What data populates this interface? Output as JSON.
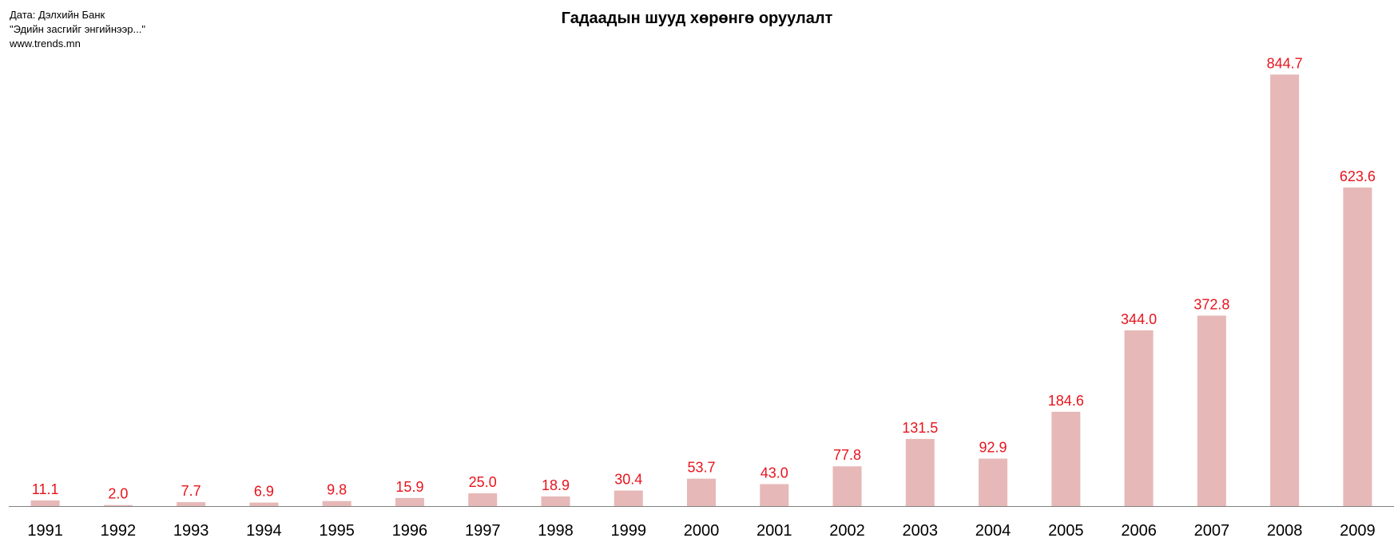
{
  "source": {
    "line1": "Дата: Дэлхийн Банк",
    "line2": "\"Эдийн засгийг энгийнээр...\"",
    "line3": "www.trends.mn"
  },
  "chart_data": {
    "type": "bar",
    "title": "Гадаадын шууд хөрөнгө оруулалт",
    "xlabel": "",
    "ylabel": "",
    "categories": [
      "1991",
      "1992",
      "1993",
      "1994",
      "1995",
      "1996",
      "1997",
      "1998",
      "1999",
      "2000",
      "2001",
      "2002",
      "2003",
      "2004",
      "2005",
      "2006",
      "2007",
      "2008",
      "2009"
    ],
    "values": [
      11.1,
      2.0,
      7.7,
      6.9,
      9.8,
      15.9,
      25.0,
      18.9,
      30.4,
      53.7,
      43.0,
      77.8,
      131.5,
      92.9,
      184.6,
      344.0,
      372.8,
      844.7,
      623.6
    ],
    "data_labels": [
      "11.1",
      "2.0",
      "7.7",
      "6.9",
      "9.8",
      "15.9",
      "25.0",
      "18.9",
      "30.4",
      "53.7",
      "43.0",
      "77.8",
      "131.5",
      "92.9",
      "184.6",
      "344.0",
      "372.8",
      "844.7",
      "623.6"
    ],
    "ylim": [
      0,
      850
    ],
    "grid": false,
    "legend": "none",
    "bar_color": "#e6b8b7",
    "label_color": "#e8141d",
    "axis_color": "#808080"
  }
}
